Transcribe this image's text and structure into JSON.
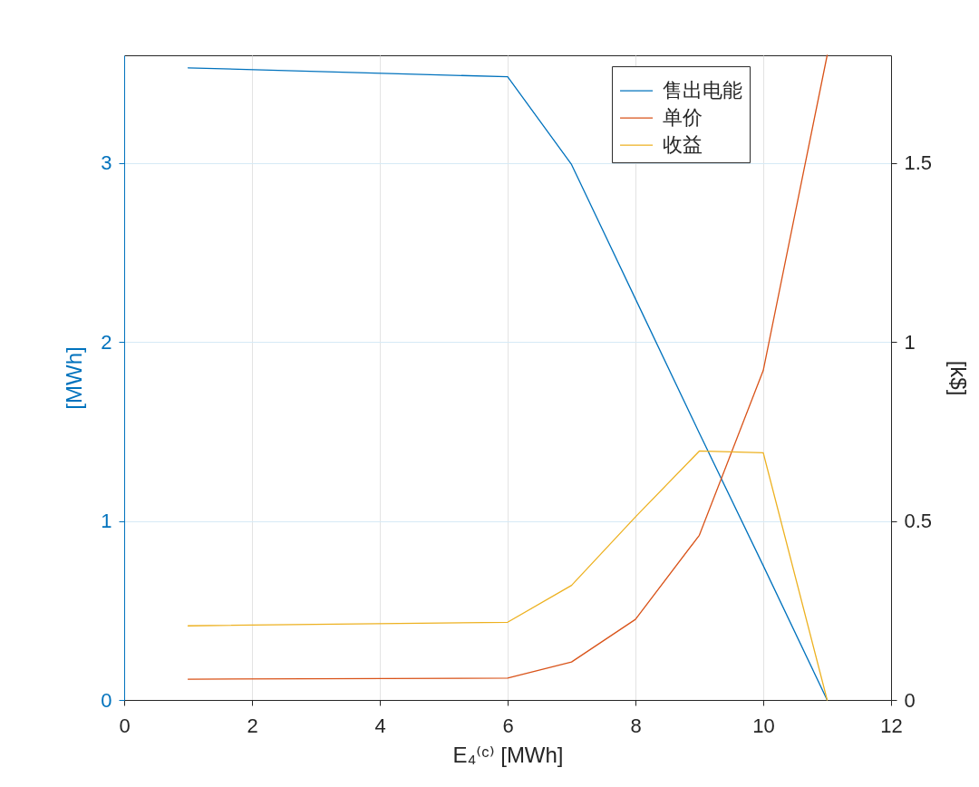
{
  "chart_data": {
    "type": "line",
    "xlabel": "E₄⁽ᶜ⁾ [MWh]",
    "ylabel": "[MWh]",
    "y2label": "[k$]",
    "x": [
      1,
      6,
      7,
      8,
      9,
      10,
      11
    ],
    "series": [
      {
        "name": "售出电能",
        "color": "#0072bd",
        "values": [
          3.53,
          3.48,
          2.99,
          2.24,
          1.49,
          0.75,
          0
        ]
      },
      {
        "name": "单价",
        "color": "#d95319",
        "axis": "y2",
        "values": [
          0.058,
          0.061,
          0.106,
          0.225,
          0.46,
          0.92,
          1.8
        ]
      },
      {
        "name": "收益",
        "color": "#edb120",
        "axis": "y2",
        "values": [
          0.207,
          0.217,
          0.32,
          0.511,
          0.695,
          0.69,
          0
        ]
      }
    ],
    "xlim": [
      0,
      12
    ],
    "xticks": [
      0,
      2,
      4,
      6,
      8,
      10,
      12
    ],
    "ylim": [
      0,
      3.6
    ],
    "yticks": [
      0,
      1,
      2,
      3
    ],
    "y2lim": [
      0,
      1.8
    ],
    "y2ticks": [
      0,
      0.5,
      1,
      1.5
    ],
    "grid": true,
    "legend": "top right"
  }
}
